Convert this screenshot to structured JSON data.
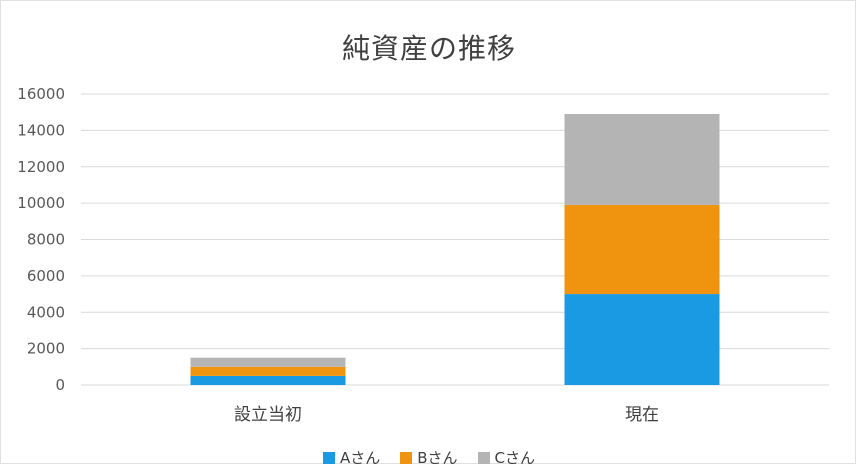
{
  "chart_data": {
    "type": "bar",
    "stacked": true,
    "title": "純資産の推移",
    "categories": [
      "設立当初",
      "現在"
    ],
    "series": [
      {
        "name": "Aさん",
        "color": "#1b9ae4",
        "values": [
          500,
          5000
        ]
      },
      {
        "name": "Bさん",
        "color": "#f0930f",
        "values": [
          500,
          4900
        ]
      },
      {
        "name": "Cさん",
        "color": "#b4b4b4",
        "values": [
          500,
          5000
        ]
      }
    ],
    "ylim": [
      0,
      16000
    ],
    "yticks": [
      0,
      2000,
      4000,
      6000,
      8000,
      10000,
      12000,
      14000,
      16000
    ],
    "grid": true,
    "legend_position": "bottom"
  }
}
